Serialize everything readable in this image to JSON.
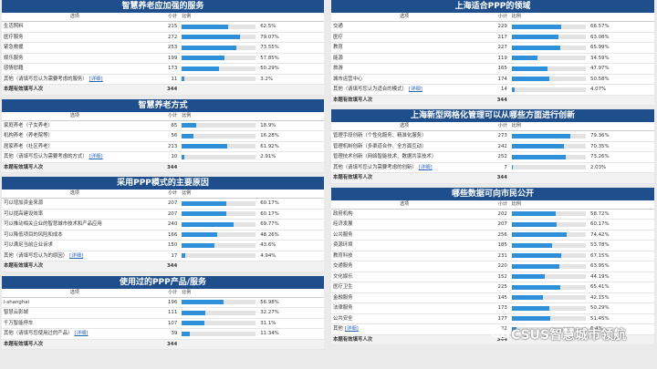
{
  "header_labels": {
    "option": "选项",
    "count": "小计",
    "ratio": "比例"
  },
  "left_panels": [
    {
      "title": "智慧养老应加强的服务",
      "rows": [
        {
          "label": "生活照料",
          "count": "215",
          "pct": 62.5,
          "pct_text": "62.5%"
        },
        {
          "label": "医疗服务",
          "count": "272",
          "pct": 79.07,
          "pct_text": "79.07%"
        },
        {
          "label": "紧急救援",
          "count": "253",
          "pct": 73.55,
          "pct_text": "73.55%"
        },
        {
          "label": "娱乐服务",
          "count": "199",
          "pct": 57.85,
          "pct_text": "57.85%"
        },
        {
          "label": "感情慰藉",
          "count": "173",
          "pct": 50.29,
          "pct_text": "50.29%"
        },
        {
          "label": "其他（请填写您认为需要考虑的服务）",
          "link": "[详细]",
          "count": "11",
          "pct": 3.2,
          "pct_text": "3.2%"
        }
      ],
      "total_label": "本题有效填写人次",
      "total": "344"
    },
    {
      "title": "智慧养老方式",
      "rows": [
        {
          "label": "家庭养老（子女养老）",
          "count": "65",
          "pct": 18.9,
          "pct_text": "18.9%"
        },
        {
          "label": "机构养老（养老院等）",
          "count": "56",
          "pct": 16.28,
          "pct_text": "16.28%"
        },
        {
          "label": "居家养老（社区养老）",
          "count": "213",
          "pct": 61.92,
          "pct_text": "61.92%"
        },
        {
          "label": "其他（请填写您认为需要考虑的方式）",
          "link": "[详细]",
          "count": "10",
          "pct": 2.91,
          "pct_text": "2.91%"
        }
      ],
      "total_label": "本题有效填写人次",
      "total": "344"
    },
    {
      "title": "采用PPP模式的主要原因",
      "rows": [
        {
          "label": "可以增加资金来源",
          "count": "207",
          "pct": 60.17,
          "pct_text": "60.17%"
        },
        {
          "label": "可以提高建设效率",
          "count": "207",
          "pct": 60.17,
          "pct_text": "60.17%"
        },
        {
          "label": "可以推动相关企业的智慧城市技术和产品应用",
          "count": "240",
          "pct": 69.77,
          "pct_text": "69.77%"
        },
        {
          "label": "可以降低项目的风险和成本",
          "count": "166",
          "pct": 48.26,
          "pct_text": "48.26%"
        },
        {
          "label": "可以满足当前企业诉求",
          "count": "150",
          "pct": 43.6,
          "pct_text": "43.6%"
        },
        {
          "label": "其他（请填写您认为的原因）",
          "link": "[详细]",
          "count": "17",
          "pct": 4.94,
          "pct_text": "4.94%"
        }
      ],
      "total_label": "本题有效填写人次",
      "total": "344"
    },
    {
      "title": "使用过的PPP产品/服务",
      "rows": [
        {
          "label": "i-shanghai",
          "count": "196",
          "pct": 56.98,
          "pct_text": "56.98%"
        },
        {
          "label": "智慧云影城",
          "count": "111",
          "pct": 32.27,
          "pct_text": "32.27%"
        },
        {
          "label": "千万智能停车",
          "count": "107",
          "pct": 31.1,
          "pct_text": "31.1%"
        },
        {
          "label": "其他（请填写您使用过的产品）",
          "link": "[详细]",
          "count": "39",
          "pct": 11.34,
          "pct_text": "11.34%"
        }
      ],
      "total_label": "本题有效填写人次",
      "total": "344"
    }
  ],
  "right_panels": [
    {
      "title": "上海适合PPP的领域",
      "rows": [
        {
          "label": "交通",
          "count": "229",
          "pct": 66.57,
          "pct_text": "66.57%"
        },
        {
          "label": "医疗",
          "count": "217",
          "pct": 63.08,
          "pct_text": "63.08%"
        },
        {
          "label": "教育",
          "count": "227",
          "pct": 65.99,
          "pct_text": "65.99%"
        },
        {
          "label": "能源",
          "count": "119",
          "pct": 34.59,
          "pct_text": "34.59%"
        },
        {
          "label": "旅游",
          "count": "165",
          "pct": 47.97,
          "pct_text": "47.97%"
        },
        {
          "label": "城市运营中心",
          "count": "174",
          "pct": 50.58,
          "pct_text": "50.58%"
        },
        {
          "label": "其他（请填写您认为适合的模式）",
          "link": "[详细]",
          "count": "14",
          "pct": 4.07,
          "pct_text": "4.07%"
        }
      ],
      "total_label": "本题有效填写人次",
      "total": "344"
    },
    {
      "title": "上海新型网格化管理可以从哪些方面进行创新",
      "rows": [
        {
          "label": "管理手段创新（个性化服务、精准化服务）",
          "count": "273",
          "pct": 79.36,
          "pct_text": "79.36%"
        },
        {
          "label": "管理机制创新（多渠道合作、全方面互动）",
          "count": "242",
          "pct": 70.35,
          "pct_text": "70.35%"
        },
        {
          "label": "管理技术创新（网络智能技术、数据共享技术）",
          "count": "252",
          "pct": 73.26,
          "pct_text": "73.26%"
        },
        {
          "label": "其他（请填写您认为需要考虑的创新）",
          "link": "[详细]",
          "count": "7",
          "pct": 2.03,
          "pct_text": "2.03%"
        }
      ],
      "total_label": "本题有效填写人次",
      "total": "344"
    },
    {
      "title": "哪些数据可向市民公开",
      "rows": [
        {
          "label": "政府机构",
          "count": "202",
          "pct": 58.72,
          "pct_text": "58.72%"
        },
        {
          "label": "经济发展",
          "count": "207",
          "pct": 60.17,
          "pct_text": "60.17%"
        },
        {
          "label": "公共服务",
          "count": "256",
          "pct": 74.42,
          "pct_text": "74.42%"
        },
        {
          "label": "资源环境",
          "count": "185",
          "pct": 53.78,
          "pct_text": "53.78%"
        },
        {
          "label": "教育科技",
          "count": "231",
          "pct": 67.15,
          "pct_text": "67.15%"
        },
        {
          "label": "交通服务",
          "count": "220",
          "pct": 63.95,
          "pct_text": "63.95%"
        },
        {
          "label": "文化娱乐",
          "count": "152",
          "pct": 44.19,
          "pct_text": "44.19%"
        },
        {
          "label": "医疗卫生",
          "count": "225",
          "pct": 65.41,
          "pct_text": "65.41%"
        },
        {
          "label": "金融服务",
          "count": "145",
          "pct": 42.15,
          "pct_text": "42.15%"
        },
        {
          "label": "法律服务",
          "count": "173",
          "pct": 50.29,
          "pct_text": "50.29%"
        },
        {
          "label": "公共安全",
          "count": "177",
          "pct": 51.45,
          "pct_text": "51.45%"
        },
        {
          "label": "其他",
          "link": "[详细]",
          "count": "22",
          "pct": 6.4,
          "pct_text": "6.4%"
        }
      ],
      "total_label": "本题有效填写人次",
      "total": "344"
    }
  ],
  "watermark": {
    "text": "CSUS智慧城市领航",
    "icon": "wechat-icon"
  }
}
